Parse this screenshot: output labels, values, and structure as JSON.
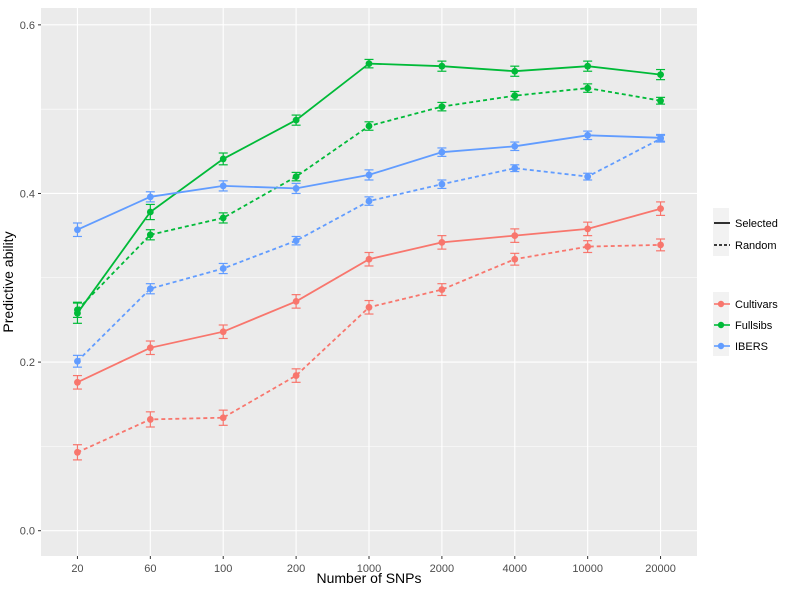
{
  "chart_data": {
    "type": "line",
    "title": "",
    "xlabel": "Number of SNPs",
    "ylabel": "Predictive ability",
    "categories": [
      "20",
      "60",
      "100",
      "200",
      "1000",
      "2000",
      "4000",
      "10000",
      "20000"
    ],
    "ylim": [
      -0.03,
      0.62
    ],
    "yticks": [
      0.0,
      0.2,
      0.4,
      0.6
    ],
    "ytick_labels": [
      "0.0",
      "0.2",
      "0.4",
      "0.6"
    ],
    "grid": true,
    "legend_placement": "right",
    "linetype_legend": [
      {
        "name": "Selected",
        "dash": "solid"
      },
      {
        "name": "Random",
        "dash": "dashed"
      }
    ],
    "color_legend": [
      {
        "name": "Cultivars",
        "color": "#F8766D"
      },
      {
        "name": "Fullsibs",
        "color": "#00BA38"
      },
      {
        "name": "IBERS",
        "color": "#619CFF"
      }
    ],
    "series": [
      {
        "population": "Cultivars",
        "method": "Selected",
        "color": "#F8766D",
        "dash": "solid",
        "values": [
          0.176,
          0.217,
          0.236,
          0.272,
          0.322,
          0.342,
          0.35,
          0.358,
          0.382
        ],
        "errors": [
          0.008,
          0.008,
          0.008,
          0.008,
          0.008,
          0.008,
          0.008,
          0.008,
          0.008
        ]
      },
      {
        "population": "Cultivars",
        "method": "Random",
        "color": "#F8766D",
        "dash": "dashed",
        "values": [
          0.093,
          0.132,
          0.134,
          0.184,
          0.265,
          0.286,
          0.322,
          0.337,
          0.339
        ],
        "errors": [
          0.009,
          0.009,
          0.009,
          0.008,
          0.008,
          0.007,
          0.007,
          0.007,
          0.007
        ]
      },
      {
        "population": "Fullsibs",
        "method": "Selected",
        "color": "#00BA38",
        "dash": "solid",
        "values": [
          0.258,
          0.378,
          0.441,
          0.487,
          0.554,
          0.551,
          0.545,
          0.551,
          0.541
        ],
        "errors": [
          0.012,
          0.009,
          0.007,
          0.006,
          0.005,
          0.006,
          0.006,
          0.006,
          0.006
        ]
      },
      {
        "population": "Fullsibs",
        "method": "Random",
        "color": "#00BA38",
        "dash": "dashed",
        "values": [
          0.262,
          0.351,
          0.371,
          0.42,
          0.48,
          0.503,
          0.516,
          0.525,
          0.51
        ],
        "errors": [
          0.009,
          0.006,
          0.006,
          0.005,
          0.005,
          0.005,
          0.005,
          0.005,
          0.004
        ]
      },
      {
        "population": "IBERS",
        "method": "Selected",
        "color": "#619CFF",
        "dash": "solid",
        "values": [
          0.357,
          0.396,
          0.409,
          0.406,
          0.422,
          0.449,
          0.456,
          0.469,
          0.466
        ],
        "errors": [
          0.008,
          0.006,
          0.006,
          0.006,
          0.006,
          0.005,
          0.005,
          0.005,
          0.004
        ]
      },
      {
        "population": "IBERS",
        "method": "Random",
        "color": "#619CFF",
        "dash": "dashed",
        "values": [
          0.201,
          0.287,
          0.311,
          0.344,
          0.391,
          0.411,
          0.43,
          0.42,
          0.465
        ],
        "errors": [
          0.007,
          0.006,
          0.006,
          0.005,
          0.005,
          0.005,
          0.004,
          0.004,
          0.004
        ]
      }
    ]
  }
}
